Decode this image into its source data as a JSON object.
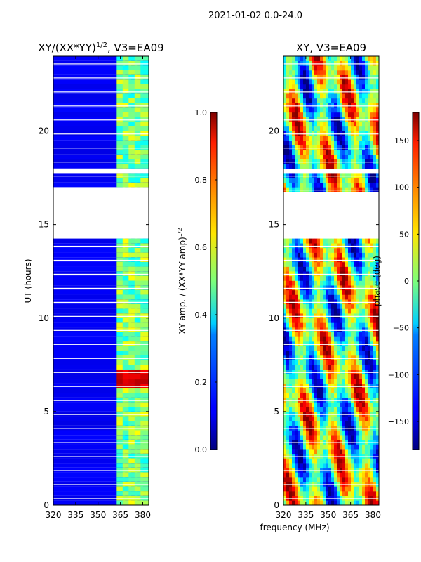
{
  "suptitle": "2021-01-02 0.0-24.0",
  "shared_xlabel": "frequency (MHz)",
  "chart_data": [
    {
      "type": "heatmap",
      "title_main": "XY/(XX*YY)",
      "title_sup": "1/2",
      "title_suffix": ", V3=EA09",
      "xlabel": "",
      "ylabel": "UT (hours)",
      "xlim": [
        320,
        384
      ],
      "ylim": [
        0,
        24
      ],
      "xticks": [
        320,
        335,
        350,
        365,
        380
      ],
      "yticks": [
        0,
        5,
        10,
        15,
        20
      ],
      "colormap": "jet",
      "colorbar": {
        "label_main": "XY amp. / (XX*YY amp)",
        "label_sup": "1/2",
        "range": [
          0.0,
          1.0
        ],
        "ticks": [
          "0.0",
          "0.2",
          "0.4",
          "0.6",
          "0.8",
          "1.0"
        ],
        "tick_values": [
          0.0,
          0.2,
          0.4,
          0.6,
          0.8,
          1.0
        ]
      },
      "gaps_hours": [
        [
          14.3,
          17.1
        ],
        [
          17.75,
          18.0
        ]
      ],
      "bright_channels_mhz": [
        364,
        368,
        372,
        376,
        380
      ],
      "peak_hours": [
        6.3,
        7.2
      ],
      "background_value": 0.1,
      "channel_value": 0.5,
      "peak_value": 0.95
    },
    {
      "type": "heatmap",
      "title": "XY, V3=EA09",
      "xlabel": "frequency (MHz)",
      "ylabel": "",
      "xlim": [
        320,
        384
      ],
      "ylim": [
        0,
        24
      ],
      "xticks": [
        320,
        335,
        350,
        365,
        380
      ],
      "yticks": [
        0,
        5,
        10,
        15,
        20
      ],
      "colormap": "jet",
      "colorbar": {
        "label": "phase (deg)",
        "range": [
          -180,
          180
        ],
        "ticks": [
          "−150",
          "−100",
          "−50",
          "0",
          "50",
          "100",
          "150"
        ],
        "tick_values": [
          -150,
          -100,
          -50,
          0,
          50,
          100,
          150
        ]
      },
      "gaps_hours": [
        [
          14.3,
          16.8
        ],
        [
          17.85,
          18.0
        ]
      ],
      "values": "phase pattern, full range -180 to 180 deg"
    }
  ]
}
